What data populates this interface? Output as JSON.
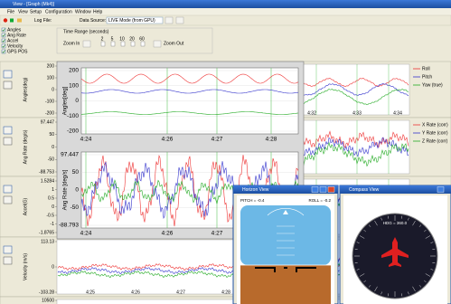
{
  "window": {
    "title": "View - [Graph (Mk4)]"
  },
  "menu": [
    "File",
    "View",
    "Setup",
    "Configuration",
    "Window",
    "Help"
  ],
  "toolbar": {
    "log_file": "Log File:",
    "data_source": "Data Source:",
    "source_value": "LIVE Mode (from GPU)"
  },
  "channels": [
    "Angles",
    "Ang Rate",
    "Accel",
    "Velocity",
    "GPS POS"
  ],
  "time_range": {
    "title": "Time Range (seconds)",
    "zoom_in": "Zoom In",
    "zoom_out": "Zoom Out",
    "options": [
      "2",
      "5",
      "10",
      "20",
      "60"
    ]
  },
  "graphs": [
    {
      "label": "Angles(deg)",
      "yticks": [
        "200",
        "100",
        "0",
        "-100",
        "-200"
      ],
      "legend": [
        "Roll",
        "Pitch",
        "Yaw (true)"
      ],
      "xticks": [
        "4:32",
        "4:33",
        "4:34"
      ]
    },
    {
      "label": "Ang Rate (deg/s)",
      "yticks": [
        "97.447",
        "50",
        "0",
        "-50",
        "-88.753"
      ],
      "legend": [
        "X Rate (corr)",
        "Y Rate (corr)",
        "Z Rate (corr)"
      ]
    },
    {
      "label": "Accel(G)",
      "yticks": [
        "1.5284",
        "1",
        "0.5",
        "0",
        "-0.5",
        "-1",
        "-1.8765"
      ]
    },
    {
      "label": "Velocity (m/s)",
      "yticks": [
        "113.13",
        "0",
        "-103.28"
      ],
      "xticks": [
        "4:25",
        "4:26",
        "4:27",
        "4:28"
      ]
    },
    {
      "yticks": [
        "10500"
      ]
    }
  ],
  "zoom_view": {
    "charts": [
      {
        "ylabel": "Angles[deg]",
        "yticks": [
          "200",
          "100",
          "0",
          "-100",
          "-200"
        ],
        "xticks": [
          "4:24",
          "4:26",
          "4:27",
          "4:28"
        ]
      },
      {
        "ylabel": "Ang Rate [deg/s]",
        "yticks": [
          "97.447",
          "50",
          "0",
          "-50",
          "-88.793"
        ],
        "xticks": [
          "4:24",
          "4:26",
          "4:27",
          "4:28"
        ]
      }
    ]
  },
  "horizon_view": {
    "title": "Horizon View",
    "pitch": "PITCH = -0.4",
    "roll": "ROLL = -0.2"
  },
  "compass_view": {
    "title": "Compass View",
    "heading": "HDG = 360.0"
  }
}
